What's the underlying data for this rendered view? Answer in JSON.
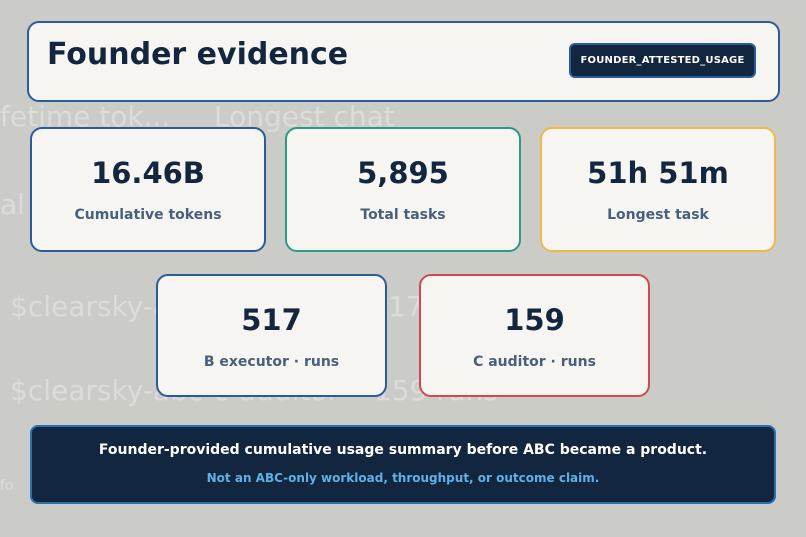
{
  "background_ghost": [
    "fetime tok...",
    "Longest chat",
    "al",
    "$clearsky-a",
    "17",
    "$clearsky-abc-c-auditor",
    "159 runs",
    "fo"
  ],
  "header": {
    "title": "Founder evidence",
    "badge": "FOUNDER_ATTESTED_USAGE"
  },
  "cards": [
    {
      "value": "16.46B",
      "label": "Cumulative tokens",
      "border": "#2a5b9c"
    },
    {
      "value": "5,895",
      "label": "Total tasks",
      "border": "#2d9a86"
    },
    {
      "value": "51h 51m",
      "label": "Longest task",
      "border": "#f0b94a"
    },
    {
      "value": "517",
      "label": "B executor · runs",
      "border": "#2a5b9c"
    },
    {
      "value": "159",
      "label": "C auditor · runs",
      "border": "#cc4a55"
    }
  ],
  "footer": {
    "main": "Founder-provided cumulative usage summary before ABC became a product.",
    "sub": "Not an ABC-only workload, throughput, or outcome claim."
  }
}
